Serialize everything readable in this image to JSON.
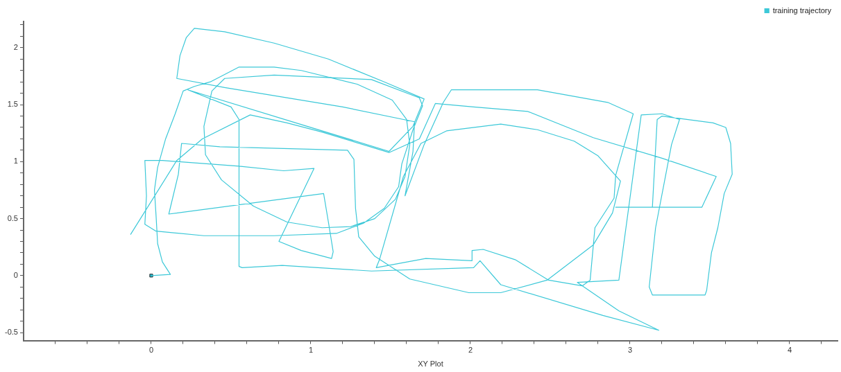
{
  "chart_data": {
    "type": "line",
    "xlabel": "XY Plot",
    "xlim": [
      -0.8,
      4.3
    ],
    "ylim": [
      -0.57,
      2.23
    ],
    "xticks": [
      {
        "value": -0.6,
        "label": null
      },
      {
        "value": -0.4,
        "label": null
      },
      {
        "value": -0.2,
        "label": null
      },
      0,
      {
        "value": 0.2,
        "label": null
      },
      {
        "value": 0.4,
        "label": null
      },
      {
        "value": 0.6,
        "label": null
      },
      {
        "value": 0.8,
        "label": null
      },
      1,
      {
        "value": 1.2,
        "label": null
      },
      {
        "value": 1.4,
        "label": null
      },
      {
        "value": 1.6,
        "label": null
      },
      {
        "value": 1.8,
        "label": null
      },
      2,
      {
        "value": 2.2,
        "label": null
      },
      {
        "value": 2.4,
        "label": null
      },
      {
        "value": 2.6,
        "label": null
      },
      {
        "value": 2.8,
        "label": null
      },
      3,
      {
        "value": 3.2,
        "label": null
      },
      {
        "value": 3.4,
        "label": null
      },
      {
        "value": 3.6,
        "label": null
      },
      {
        "value": 3.8,
        "label": null
      },
      4,
      {
        "value": 4.2,
        "label": null
      }
    ],
    "yticks": [
      -0.5,
      {
        "value": -0.4,
        "label": null
      },
      {
        "value": -0.3,
        "label": null
      },
      {
        "value": -0.2,
        "label": null
      },
      {
        "value": -0.1,
        "label": null
      },
      0,
      {
        "value": 0.1,
        "label": null
      },
      {
        "value": 0.2,
        "label": null
      },
      {
        "value": 0.3,
        "label": null
      },
      {
        "value": 0.4,
        "label": null
      },
      0.5,
      {
        "value": 0.6,
        "label": null
      },
      {
        "value": 0.7,
        "label": null
      },
      {
        "value": 0.8,
        "label": null
      },
      {
        "value": 0.9,
        "label": null
      },
      1,
      {
        "value": 1.1,
        "label": null
      },
      {
        "value": 1.2,
        "label": null
      },
      {
        "value": 1.3,
        "label": null
      },
      {
        "value": 1.4,
        "label": null
      },
      1.5,
      {
        "value": 1.6,
        "label": null
      },
      {
        "value": 1.7,
        "label": null
      },
      {
        "value": 1.8,
        "label": null
      },
      {
        "value": 1.9,
        "label": null
      },
      2,
      {
        "value": 2.1,
        "label": null
      },
      {
        "value": 2.2,
        "label": null
      }
    ],
    "grid": false,
    "legend": "top right",
    "line_style": "solid",
    "series": [
      {
        "name": "training trajectory",
        "type": "line",
        "color": "#3cc8d8",
        "marker": "none",
        "x": [
          0,
          0.12,
          0.07,
          0.04,
          0.03,
          0.02,
          0.04,
          0.09,
          0.15,
          0.2,
          0.27,
          0.37,
          0.55,
          0.77,
          0.94,
          1.29,
          1.51,
          1.6,
          1.62,
          1.59,
          1.53,
          1.4,
          1.25,
          1.07,
          0.85,
          0.64,
          0.44,
          0.34,
          0.33,
          0.38,
          0.46,
          0.77,
          1.38,
          1.68,
          1.7,
          1.64,
          1.57,
          1.55,
          1.46,
          1.33,
          1.16,
          0.77,
          0.33,
          0.03,
          -0.04,
          -0.03,
          -0.04,
          0.07,
          0.55,
          0.83,
          1.02,
          0.8,
          0.94,
          1.13,
          1.14,
          1.11,
          1.08,
          0.11,
          0.17,
          0.19,
          0.43,
          1.23,
          1.27,
          1.28,
          1.3,
          1.4,
          1.62,
          1.99,
          2.19,
          2.48,
          2.77,
          2.89,
          2.94,
          2.8,
          2.65,
          2.42,
          2.19,
          1.85,
          1.69,
          1.58,
          1.43,
          1.41,
          1.72,
          2.01,
          2.01,
          2.08,
          2.28,
          2.49,
          2.7,
          2.75,
          2.78,
          2.9,
          2.91,
          3.02,
          2.86,
          2.42,
          2.07,
          1.88,
          1.83,
          1.71,
          1.59,
          1.64,
          1.65,
          1.2,
          0.85,
          0.46,
          0.16,
          0.18,
          0.22,
          0.27,
          0.46,
          0.77,
          1.11,
          1.46,
          1.71,
          1.64,
          1.49,
          0.23,
          0.5,
          0.55,
          0.55,
          0.57,
          0.82,
          1.38,
          2.02,
          2.06,
          2.19,
          2.83,
          3.18,
          2.93,
          2.67,
          2.93,
          3.07,
          3.2,
          3.31,
          3.26,
          3.16,
          3.12,
          3.14,
          3.47,
          3.48,
          3.51,
          3.55,
          3.59,
          3.64,
          3.63,
          3.6,
          3.52,
          3.2,
          3.17,
          3.14,
          2.91,
          3.45,
          3.54,
          3.2,
          2.77,
          2.36,
          2.02,
          1.78,
          1.68,
          1.49,
          1.07,
          0.85,
          0.62,
          0.32,
          0.16,
          -0.13
        ],
        "values": [
          0,
          0.01,
          0.12,
          0.28,
          0.53,
          0.75,
          0.95,
          1.2,
          1.42,
          1.62,
          1.66,
          1.7,
          1.83,
          1.83,
          1.8,
          1.68,
          1.54,
          1.37,
          1.15,
          0.87,
          0.67,
          0.5,
          0.43,
          0.42,
          0.47,
          0.61,
          0.84,
          1.06,
          1.31,
          1.62,
          1.73,
          1.76,
          1.72,
          1.56,
          1.49,
          1.28,
          0.98,
          0.78,
          0.59,
          0.46,
          0.37,
          0.35,
          0.35,
          0.39,
          0.45,
          0.7,
          1.01,
          1.01,
          0.96,
          0.92,
          0.94,
          0.3,
          0.22,
          0.15,
          0.21,
          0.47,
          0.72,
          0.54,
          0.89,
          1.16,
          1.13,
          1.1,
          1.02,
          0.59,
          0.34,
          0.17,
          -0.03,
          -0.15,
          -0.15,
          -0.04,
          0.27,
          0.55,
          0.83,
          1.05,
          1.18,
          1.28,
          1.33,
          1.27,
          1.16,
          0.87,
          0.14,
          0.07,
          0.15,
          0.13,
          0.22,
          0.23,
          0.14,
          -0.04,
          -0.09,
          -0.04,
          0.42,
          0.68,
          0.88,
          1.42,
          1.52,
          1.63,
          1.63,
          1.63,
          1.52,
          1.15,
          0.7,
          1.09,
          1.35,
          1.48,
          1.56,
          1.65,
          1.73,
          1.93,
          2.09,
          2.17,
          2.14,
          2.04,
          1.9,
          1.7,
          1.55,
          1.31,
          1.09,
          1.63,
          1.48,
          1.37,
          0.08,
          0.07,
          0.09,
          0.04,
          0.07,
          0.13,
          -0.08,
          -0.35,
          -0.48,
          -0.31,
          -0.06,
          -0.04,
          1.41,
          1.42,
          1.37,
          1.15,
          0.42,
          -0.1,
          -0.17,
          -0.17,
          -0.13,
          0.2,
          0.42,
          0.72,
          0.89,
          1.16,
          1.3,
          1.34,
          1.4,
          1.37,
          0.6,
          0.6,
          0.6,
          0.87,
          1.03,
          1.21,
          1.44,
          1.48,
          1.51,
          1.2,
          1.08,
          1.26,
          1.34,
          1.41,
          1.2,
          1.01,
          0.36
        ]
      },
      {
        "type": "scatter",
        "color": "#1fb5c9",
        "marker": "square",
        "x": [
          0
        ],
        "values": [
          0
        ]
      }
    ]
  }
}
